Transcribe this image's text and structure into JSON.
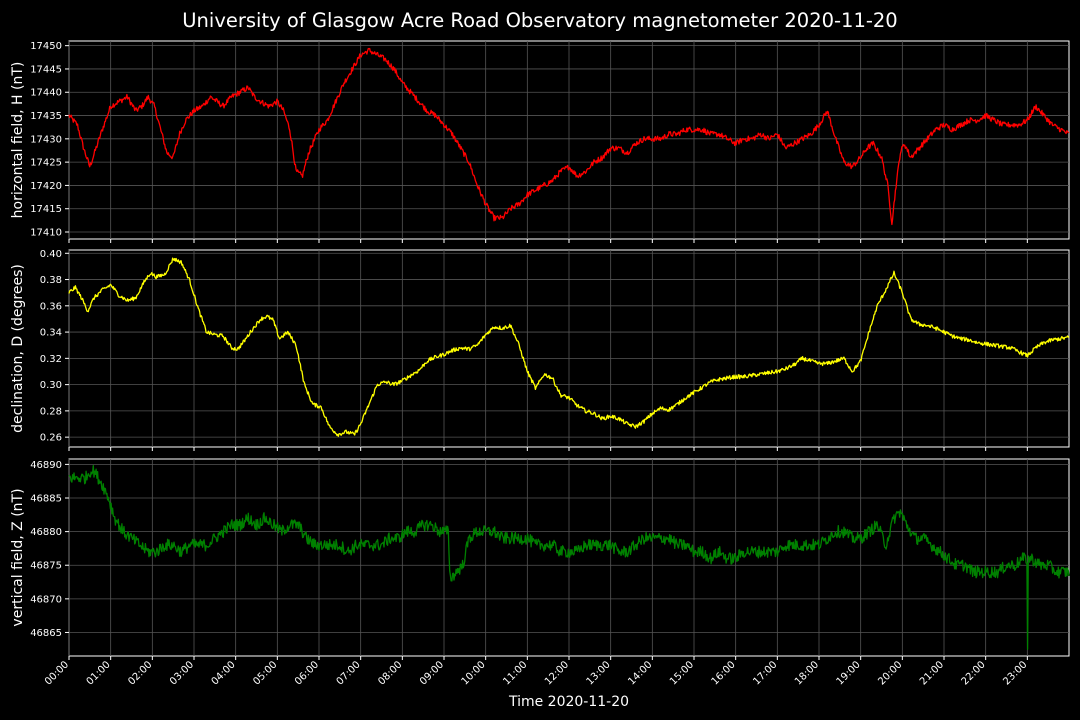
{
  "chart_data": {
    "type": "line",
    "title": "University of Glasgow Acre Road Observatory magnetometer 2020-11-20",
    "xlabel": "Time 2020-11-20",
    "x_unit": "hours",
    "xlim": [
      0,
      24
    ],
    "x_ticks": [
      "00:00",
      "01:00",
      "02:00",
      "03:00",
      "04:00",
      "05:00",
      "06:00",
      "07:00",
      "08:00",
      "09:00",
      "10:00",
      "11:00",
      "12:00",
      "13:00",
      "14:00",
      "15:00",
      "16:00",
      "17:00",
      "18:00",
      "19:00",
      "20:00",
      "21:00",
      "22:00",
      "23:00"
    ],
    "grid": true,
    "panels": [
      {
        "ylabel": "horizontal field, H (nT)",
        "color": "#ff0000",
        "ylim": [
          17408.5,
          17451
        ],
        "yticks": [
          17410,
          17415,
          17420,
          17425,
          17430,
          17435,
          17440,
          17445,
          17450
        ],
        "noise": 0.6,
        "series": [
          {
            "x": [
              0,
              0.2,
              0.35,
              0.5,
              0.65,
              0.8,
              1.0,
              1.2,
              1.4,
              1.6,
              1.75,
              1.9,
              2.05,
              2.2,
              2.35,
              2.5,
              2.65,
              2.8,
              3.0,
              3.2,
              3.4,
              3.55,
              3.7,
              3.9,
              4.1,
              4.3,
              4.45,
              4.6,
              4.8,
              5.0,
              5.15,
              5.3,
              5.45,
              5.6,
              5.75,
              6.0,
              6.2,
              6.4,
              6.6,
              6.8,
              7.0,
              7.2,
              7.4,
              7.6,
              7.8,
              8.0,
              8.2,
              8.4,
              8.6,
              8.8,
              9.0,
              9.2,
              9.4,
              9.6,
              9.8,
              10.0,
              10.2,
              10.4,
              10.6,
              10.8,
              11.0,
              11.2,
              11.4,
              11.6,
              11.8,
              12.0,
              12.2,
              12.4,
              12.6,
              12.8,
              13.0,
              13.2,
              13.4,
              13.6,
              13.8,
              14.0,
              14.2,
              14.4,
              14.6,
              14.8,
              15.0,
              15.2,
              15.4,
              15.6,
              15.8,
              16.0,
              16.2,
              16.4,
              16.6,
              16.8,
              17.0,
              17.2,
              17.4,
              17.6,
              17.8,
              18.0,
              18.2,
              18.4,
              18.6,
              18.8,
              19.0,
              19.15,
              19.3,
              19.5,
              19.65,
              19.75,
              19.85,
              19.95,
              20.05,
              20.2,
              20.4,
              20.6,
              20.8,
              21.0,
              21.2,
              21.4,
              21.6,
              21.8,
              22.0,
              22.2,
              22.4,
              22.6,
              22.8,
              23.0,
              23.2,
              23.4,
              23.6,
              23.8,
              24.0
            ],
            "y": [
              17435,
              17433,
              17428,
              17424,
              17428,
              17432,
              17437,
              17438,
              17439,
              17436,
              17437,
              17439,
              17437,
              17432,
              17427,
              17426,
              17431,
              17434,
              17436,
              17437,
              17439,
              17438,
              17437,
              17439,
              17440,
              17441,
              17439,
              17438,
              17437,
              17438,
              17436,
              17432,
              17423,
              17422,
              17427,
              17432,
              17434,
              17438,
              17442,
              17445,
              17448,
              17449,
              17448,
              17447,
              17445,
              17442,
              17440,
              17438,
              17436,
              17435,
              17433,
              17431,
              17428,
              17425,
              17420,
              17416,
              17413,
              17413,
              17415,
              17416,
              17418,
              17419,
              17420,
              17421,
              17423,
              17424,
              17422,
              17423,
              17425,
              17426,
              17428,
              17428,
              17427,
              17429,
              17430,
              17430,
              17430,
              17431,
              17431,
              17432,
              17432,
              17432,
              17431,
              17431,
              17430,
              17429,
              17430,
              17430,
              17431,
              17430,
              17431,
              17428,
              17429,
              17430,
              17431,
              17433,
              17436,
              17430,
              17425,
              17424,
              17426,
              17428,
              17429,
              17426,
              17420,
              17412,
              17420,
              17427,
              17429,
              17426,
              17428,
              17430,
              17432,
              17433,
              17432,
              17433,
              17434,
              17434,
              17435,
              17434,
              17433,
              17433,
              17433,
              17434,
              17437,
              17435,
              17433,
              17432,
              17431
            ]
          }
        ]
      },
      {
        "ylabel": "declination, D (degrees)",
        "color": "#ffff00",
        "ylim": [
          0.2525,
          0.4025
        ],
        "yticks": [
          0.26,
          0.28,
          0.3,
          0.32,
          0.34,
          0.36,
          0.38,
          0.4
        ],
        "ytick_labels": [
          "0.26",
          "0.28",
          "0.30",
          "0.32",
          "0.34",
          "0.36",
          "0.38",
          "0.40"
        ],
        "noise": 0.0015,
        "series": [
          {
            "x": [
              0,
              0.15,
              0.3,
              0.45,
              0.6,
              0.8,
              1.0,
              1.2,
              1.4,
              1.6,
              1.8,
              1.95,
              2.1,
              2.3,
              2.5,
              2.7,
              2.9,
              3.1,
              3.3,
              3.5,
              3.7,
              3.9,
              4.05,
              4.2,
              4.4,
              4.6,
              4.75,
              4.9,
              5.05,
              5.25,
              5.45,
              5.65,
              5.85,
              6.05,
              6.25,
              6.45,
              6.65,
              6.85,
              7.0,
              7.2,
              7.4,
              7.6,
              7.8,
              8.0,
              8.2,
              8.4,
              8.6,
              8.8,
              9.0,
              9.2,
              9.4,
              9.6,
              9.8,
              10.0,
              10.2,
              10.4,
              10.6,
              10.8,
              11.0,
              11.2,
              11.4,
              11.6,
              11.8,
              12.0,
              12.2,
              12.4,
              12.6,
              12.8,
              13.0,
              13.2,
              13.4,
              13.6,
              13.8,
              14.0,
              14.2,
              14.4,
              14.6,
              14.8,
              15.0,
              15.2,
              15.4,
              15.6,
              15.8,
              16.0,
              16.2,
              16.4,
              16.6,
              16.8,
              17.0,
              17.2,
              17.4,
              17.6,
              17.8,
              18.0,
              18.2,
              18.4,
              18.6,
              18.8,
              19.0,
              19.2,
              19.4,
              19.6,
              19.8,
              20.0,
              20.2,
              20.4,
              20.6,
              20.8,
              21.0,
              21.2,
              21.4,
              21.6,
              21.8,
              22.0,
              22.2,
              22.4,
              22.6,
              22.8,
              23.0,
              23.2,
              23.4,
              23.6,
              23.8,
              24.0
            ],
            "y": [
              0.37,
              0.374,
              0.366,
              0.356,
              0.366,
              0.372,
              0.376,
              0.368,
              0.364,
              0.366,
              0.378,
              0.385,
              0.382,
              0.384,
              0.396,
              0.393,
              0.379,
              0.358,
              0.34,
              0.338,
              0.337,
              0.328,
              0.327,
              0.333,
              0.342,
              0.35,
              0.352,
              0.349,
              0.335,
              0.34,
              0.33,
              0.3,
              0.285,
              0.283,
              0.268,
              0.262,
              0.264,
              0.262,
              0.27,
              0.285,
              0.3,
              0.302,
              0.3,
              0.303,
              0.307,
              0.311,
              0.318,
              0.321,
              0.323,
              0.326,
              0.328,
              0.327,
              0.33,
              0.338,
              0.344,
              0.343,
              0.345,
              0.33,
              0.31,
              0.297,
              0.308,
              0.305,
              0.292,
              0.29,
              0.284,
              0.28,
              0.278,
              0.274,
              0.276,
              0.274,
              0.27,
              0.268,
              0.272,
              0.278,
              0.282,
              0.281,
              0.285,
              0.29,
              0.294,
              0.298,
              0.302,
              0.304,
              0.305,
              0.306,
              0.306,
              0.307,
              0.308,
              0.309,
              0.31,
              0.312,
              0.315,
              0.32,
              0.318,
              0.316,
              0.316,
              0.318,
              0.32,
              0.31,
              0.318,
              0.34,
              0.36,
              0.372,
              0.385,
              0.37,
              0.35,
              0.346,
              0.345,
              0.343,
              0.34,
              0.337,
              0.335,
              0.334,
              0.332,
              0.331,
              0.33,
              0.329,
              0.328,
              0.325,
              0.322,
              0.328,
              0.332,
              0.334,
              0.335,
              0.336
            ],
            "spikes": []
          }
        ]
      },
      {
        "ylabel": "vertical field, Z (nT)",
        "color": "#008000",
        "ylim": [
          46861.5,
          46890.8
        ],
        "yticks": [
          46865,
          46870,
          46875,
          46880,
          46885,
          46890
        ],
        "noise": 0.9,
        "series": [
          {
            "x": [
              0,
              0.2,
              0.4,
              0.5,
              0.6,
              0.7,
              0.8,
              0.95,
              1.1,
              1.3,
              1.5,
              1.7,
              1.9,
              2.1,
              2.3,
              2.5,
              2.7,
              2.9,
              3.1,
              3.3,
              3.5,
              3.7,
              3.9,
              4.1,
              4.3,
              4.5,
              4.7,
              4.9,
              5.1,
              5.3,
              5.5,
              5.7,
              5.9,
              6.1,
              6.3,
              6.5,
              6.7,
              6.9,
              7.1,
              7.3,
              7.5,
              7.7,
              7.9,
              8.1,
              8.3,
              8.5,
              8.7,
              8.9,
              9.1,
              9.15,
              9.3,
              9.45,
              9.6,
              9.8,
              10.0,
              10.2,
              10.4,
              10.6,
              10.8,
              11.0,
              11.2,
              11.4,
              11.6,
              11.8,
              12.0,
              12.2,
              12.4,
              12.6,
              12.8,
              13.0,
              13.2,
              13.4,
              13.6,
              13.8,
              14.0,
              14.2,
              14.4,
              14.6,
              14.8,
              15.0,
              15.2,
              15.4,
              15.6,
              15.8,
              16.0,
              16.2,
              16.4,
              16.6,
              16.8,
              17.0,
              17.2,
              17.4,
              17.6,
              17.8,
              18.0,
              18.2,
              18.4,
              18.6,
              18.8,
              19.0,
              19.2,
              19.4,
              19.6,
              19.8,
              19.95,
              20.1,
              20.3,
              20.5,
              20.7,
              20.9,
              21.1,
              21.3,
              21.5,
              21.7,
              21.9,
              22.1,
              22.3,
              22.5,
              22.7,
              22.9,
              23.1,
              23.3,
              23.5,
              23.7,
              23.9,
              24.0
            ],
            "y": [
              46888,
              46888,
              46888,
              46889,
              46889,
              46888,
              46887,
              46885,
              46882,
              46880,
              46879,
              46878,
              46877,
              46877,
              46878,
              46878,
              46877,
              46878,
              46878,
              46878,
              46879,
              46880,
              46881,
              46881,
              46882,
              46881,
              46882,
              46881,
              46880,
              46881,
              46881,
              46879,
              46878,
              46878,
              46878,
              46878,
              46877,
              46878,
              46878,
              46878,
              46878,
              46879,
              46879,
              46880,
              46880,
              46881,
              46881,
              46880,
              46880,
              46873,
              46874,
              46875,
              46879,
              46880,
              46880,
              46880,
              46879,
              46879,
              46879,
              46879,
              46878,
              46878,
              46878,
              46877,
              46877,
              46877,
              46878,
              46878,
              46878,
              46878,
              46877,
              46877,
              46878,
              46879,
              46879,
              46879,
              46879,
              46878,
              46878,
              46877,
              46877,
              46876,
              46877,
              46876,
              46876,
              46877,
              46877,
              46877,
              46877,
              46877,
              46878,
              46878,
              46878,
              46878,
              46878,
              46879,
              46880,
              46880,
              46879,
              46879,
              46880,
              46881,
              46878,
              46882,
              46883,
              46881,
              46879,
              46879,
              46878,
              46877,
              46876,
              46875,
              46875,
              46874,
              46874,
              46874,
              46874,
              46875,
              46875,
              46876,
              46876,
              46875,
              46875,
              46874,
              46874,
              46874
            ],
            "spikes": [
              [
                23.0,
                46862.5
              ]
            ]
          }
        ]
      }
    ]
  }
}
